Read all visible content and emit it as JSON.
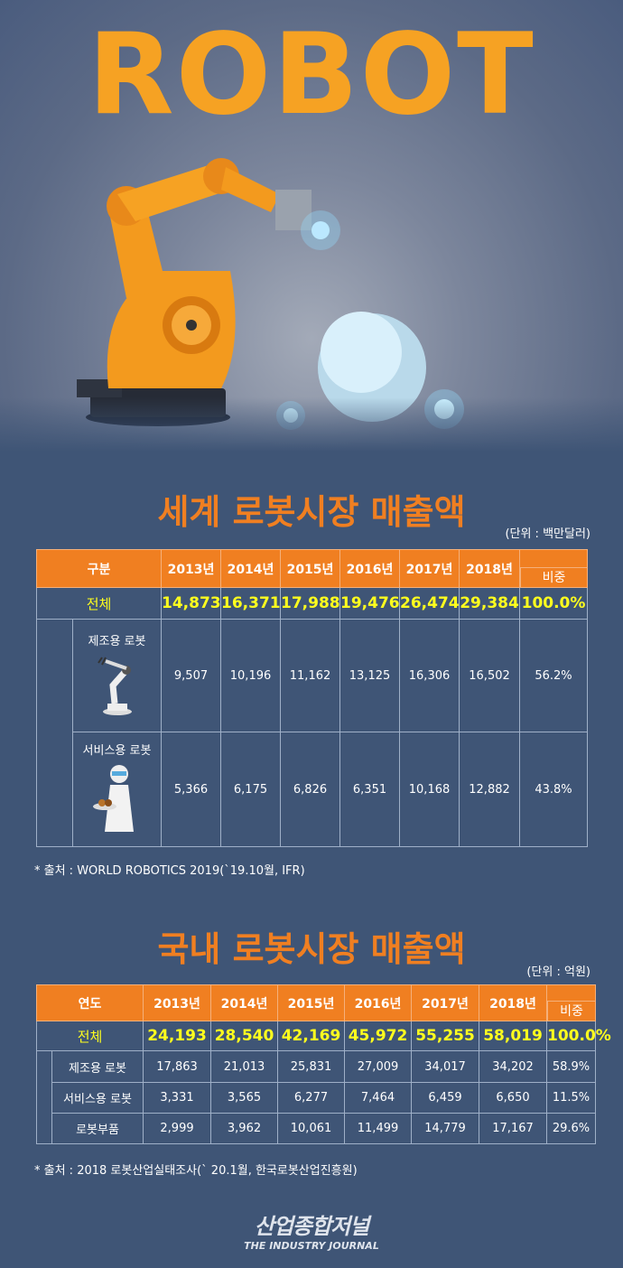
{
  "hero": {
    "title": "ROBOT"
  },
  "chart_data": [
    {
      "type": "table",
      "title": "세계 로봇시장 매출액",
      "unit": "(단위 : 백만달러)",
      "header": [
        "구분",
        "2013년",
        "2014년",
        "2015년",
        "2016년",
        "2017년",
        "2018년",
        "비중"
      ],
      "rows": [
        {
          "label": "전체",
          "values": [
            "14,873",
            "16,371",
            "17,988",
            "19,476",
            "26,474",
            "29,384",
            "100.0%"
          ],
          "total": true
        },
        {
          "label": "제조용 로봇",
          "values": [
            "9,507",
            "10,196",
            "11,162",
            "13,125",
            "16,306",
            "16,502",
            "56.2%"
          ],
          "icon": "industrial-robot-icon"
        },
        {
          "label": "서비스용 로봇",
          "values": [
            "5,366",
            "6,175",
            "6,826",
            "6,351",
            "10,168",
            "12,882",
            "43.8%"
          ],
          "icon": "service-robot-icon"
        }
      ],
      "source": "* 출처 : WORLD ROBOTICS 2019(`19.10월, IFR)"
    },
    {
      "type": "table",
      "title": "국내 로봇시장 매출액",
      "unit": "(단위 : 억원)",
      "header": [
        "연도",
        "2013년",
        "2014년",
        "2015년",
        "2016년",
        "2017년",
        "2018년",
        "비중"
      ],
      "rows": [
        {
          "label": "전체",
          "values": [
            "24,193",
            "28,540",
            "42,169",
            "45,972",
            "55,255",
            "58,019",
            "100.0%"
          ],
          "total": true
        },
        {
          "label": "제조용 로봇",
          "values": [
            "17,863",
            "21,013",
            "25,831",
            "27,009",
            "34,017",
            "34,202",
            "58.9%"
          ]
        },
        {
          "label": "서비스용 로봇",
          "values": [
            "3,331",
            "3,565",
            "6,277",
            "7,464",
            "6,459",
            "6,650",
            "11.5%"
          ]
        },
        {
          "label": "로봇부품",
          "values": [
            "2,999",
            "3,962",
            "10,061",
            "11,499",
            "14,779",
            "17,167",
            "29.6%"
          ]
        }
      ],
      "source": "* 출처 : 2018 로봇산업실태조사(` 20.1월, 한국로봇산업진흥원)"
    }
  ],
  "logo": {
    "korean": "산업종합저널",
    "english": "THE INDUSTRY JOURNAL"
  },
  "colors": {
    "accent": "#f07f21",
    "title": "#f6a223",
    "highlight": "#ffff1e",
    "background": "#3f5576"
  }
}
